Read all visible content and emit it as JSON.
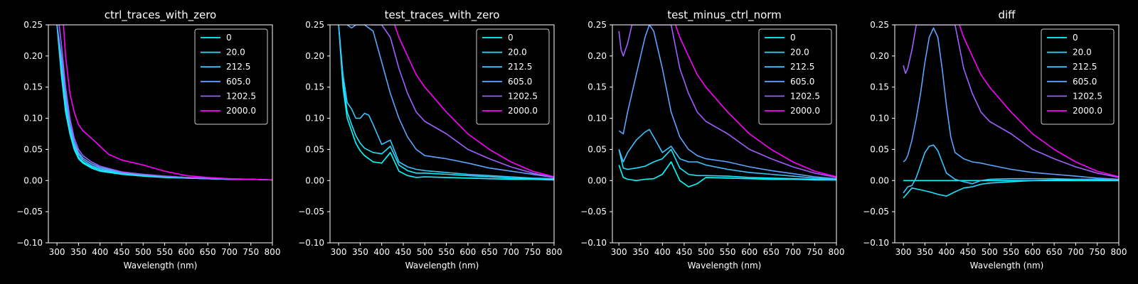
{
  "figure": {
    "background": "#000000",
    "foreground": "#ffffff"
  },
  "legend": {
    "entries": [
      {
        "label": "0",
        "color": "#00ffff"
      },
      {
        "label": "20.0",
        "color": "#1ae5ff"
      },
      {
        "label": "212.5",
        "color": "#3dc2ff"
      },
      {
        "label": "605.0",
        "color": "#5ba4ff"
      },
      {
        "label": "1202.5",
        "color": "#a05fff"
      },
      {
        "label": "2000.0",
        "color": "#ff00ff"
      }
    ],
    "placement": "top-right"
  },
  "chart_data": [
    {
      "type": "line",
      "title": "ctrl_traces_with_zero",
      "xlabel": "Wavelength (nm)",
      "ylabel": "",
      "xlim": [
        280,
        800
      ],
      "ylim": [
        -0.1,
        0.25
      ],
      "x_ticks": [
        300,
        350,
        400,
        450,
        500,
        550,
        600,
        650,
        700,
        750,
        800
      ],
      "y_ticks": [
        "−0.10",
        "−0.05",
        "0.00",
        "0.05",
        "0.10",
        "0.15",
        "0.20",
        "0.25"
      ],
      "grid": false,
      "series": [
        {
          "name": "0",
          "x": [
            300,
            310,
            320,
            330,
            340,
            350,
            360,
            380,
            400,
            450,
            500,
            550,
            600,
            650,
            700,
            750,
            800
          ],
          "y": [
            0.25,
            0.17,
            0.11,
            0.075,
            0.05,
            0.035,
            0.028,
            0.02,
            0.015,
            0.01,
            0.007,
            0.005,
            0.004,
            0.003,
            0.002,
            0.002,
            0.001
          ]
        },
        {
          "name": "20.0",
          "x": [
            300,
            310,
            320,
            330,
            340,
            350,
            360,
            380,
            400,
            450,
            500,
            550,
            600,
            650,
            700,
            750,
            800
          ],
          "y": [
            0.25,
            0.18,
            0.12,
            0.08,
            0.055,
            0.038,
            0.03,
            0.022,
            0.017,
            0.011,
            0.008,
            0.006,
            0.004,
            0.003,
            0.002,
            0.002,
            0.001
          ]
        },
        {
          "name": "212.5",
          "x": [
            300,
            310,
            320,
            330,
            340,
            350,
            360,
            380,
            400,
            450,
            500,
            550,
            600,
            650,
            700,
            750,
            800
          ],
          "y": [
            0.25,
            0.19,
            0.13,
            0.085,
            0.058,
            0.042,
            0.033,
            0.024,
            0.019,
            0.012,
            0.009,
            0.006,
            0.005,
            0.003,
            0.002,
            0.002,
            0.001
          ]
        },
        {
          "name": "605.0",
          "x": [
            300,
            310,
            320,
            330,
            340,
            350,
            360,
            380,
            400,
            450,
            500,
            550,
            600,
            650,
            700,
            750,
            800
          ],
          "y": [
            0.25,
            0.2,
            0.14,
            0.09,
            0.062,
            0.045,
            0.036,
            0.027,
            0.021,
            0.013,
            0.01,
            0.007,
            0.005,
            0.003,
            0.002,
            0.002,
            0.001
          ]
        },
        {
          "name": "1202.5",
          "x": [
            305,
            310,
            320,
            330,
            340,
            350,
            360,
            380,
            400,
            450,
            500,
            550,
            600,
            650,
            700,
            750,
            800
          ],
          "y": [
            0.25,
            0.22,
            0.15,
            0.1,
            0.068,
            0.05,
            0.04,
            0.03,
            0.023,
            0.014,
            0.01,
            0.007,
            0.005,
            0.004,
            0.003,
            0.002,
            0.001
          ]
        },
        {
          "name": "2000.0",
          "x": [
            315,
            320,
            330,
            340,
            350,
            360,
            380,
            400,
            420,
            450,
            500,
            550,
            600,
            650,
            700,
            750,
            800
          ],
          "y": [
            0.25,
            0.2,
            0.14,
            0.11,
            0.09,
            0.08,
            0.068,
            0.055,
            0.042,
            0.033,
            0.025,
            0.015,
            0.008,
            0.005,
            0.003,
            0.002,
            0.001
          ]
        }
      ]
    },
    {
      "type": "line",
      "title": "test_traces_with_zero",
      "xlabel": "Wavelength (nm)",
      "ylabel": "",
      "xlim": [
        280,
        800
      ],
      "ylim": [
        -0.1,
        0.25
      ],
      "x_ticks": [
        300,
        350,
        400,
        450,
        500,
        550,
        600,
        650,
        700,
        750,
        800
      ],
      "y_ticks": [
        "−0.10",
        "−0.05",
        "0.00",
        "0.05",
        "0.10",
        "0.15",
        "0.20",
        "0.25"
      ],
      "grid": false,
      "series": [
        {
          "name": "0",
          "x": [
            300,
            310,
            320,
            330,
            340,
            350,
            360,
            380,
            400,
            420,
            440,
            460,
            480,
            500,
            550,
            600,
            650,
            700,
            750,
            800
          ],
          "y": [
            0.25,
            0.15,
            0.1,
            0.08,
            0.06,
            0.048,
            0.04,
            0.03,
            0.028,
            0.045,
            0.015,
            0.008,
            0.005,
            0.006,
            0.005,
            0.004,
            0.003,
            0.002,
            0.002,
            0.001
          ]
        },
        {
          "name": "20.0",
          "x": [
            300,
            310,
            320,
            330,
            340,
            350,
            360,
            380,
            400,
            420,
            440,
            460,
            480,
            500,
            550,
            600,
            650,
            700,
            750,
            800
          ],
          "y": [
            0.25,
            0.16,
            0.11,
            0.09,
            0.072,
            0.06,
            0.052,
            0.045,
            0.043,
            0.055,
            0.025,
            0.016,
            0.012,
            0.012,
            0.01,
            0.008,
            0.006,
            0.004,
            0.003,
            0.002
          ]
        },
        {
          "name": "212.5",
          "x": [
            300,
            310,
            320,
            330,
            340,
            350,
            360,
            370,
            380,
            400,
            420,
            440,
            460,
            480,
            500,
            550,
            600,
            650,
            700,
            750,
            800
          ],
          "y": [
            0.25,
            0.17,
            0.125,
            0.115,
            0.1,
            0.1,
            0.108,
            0.105,
            0.09,
            0.058,
            0.065,
            0.03,
            0.022,
            0.018,
            0.016,
            0.013,
            0.01,
            0.008,
            0.006,
            0.004,
            0.003
          ]
        },
        {
          "name": "605.0",
          "x": [
            320,
            330,
            340,
            350,
            360,
            380,
            400,
            420,
            440,
            460,
            480,
            500,
            550,
            600,
            650,
            700,
            750,
            800
          ],
          "y": [
            0.25,
            0.245,
            0.25,
            0.25,
            0.25,
            0.24,
            0.19,
            0.14,
            0.1,
            0.07,
            0.05,
            0.04,
            0.035,
            0.028,
            0.02,
            0.015,
            0.01,
            0.005
          ]
        },
        {
          "name": "1202.5",
          "x": [
            375,
            380,
            400,
            420,
            440,
            460,
            480,
            500,
            550,
            600,
            650,
            700,
            750,
            800
          ],
          "y": [
            0.25,
            0.25,
            0.25,
            0.23,
            0.18,
            0.14,
            0.11,
            0.095,
            0.075,
            0.05,
            0.035,
            0.022,
            0.012,
            0.005
          ]
        },
        {
          "name": "2000.0",
          "x": [
            430,
            440,
            460,
            480,
            500,
            550,
            600,
            650,
            700,
            750,
            800
          ],
          "y": [
            0.25,
            0.23,
            0.2,
            0.17,
            0.15,
            0.11,
            0.075,
            0.05,
            0.03,
            0.015,
            0.006
          ]
        }
      ]
    },
    {
      "type": "line",
      "title": "test_minus_ctrl_norm",
      "xlabel": "Wavelength (nm)",
      "ylabel": "",
      "xlim": [
        285,
        800
      ],
      "ylim": [
        -0.1,
        0.25
      ],
      "x_ticks": [
        300,
        350,
        400,
        450,
        500,
        550,
        600,
        650,
        700,
        750,
        800
      ],
      "y_ticks": [
        "−0.10",
        "−0.05",
        "0.00",
        "0.05",
        "0.10",
        "0.15",
        "0.20",
        "0.25"
      ],
      "grid": false,
      "series": [
        {
          "name": "0",
          "x": [
            300,
            310,
            320,
            340,
            360,
            380,
            400,
            420,
            440,
            460,
            480,
            500,
            550,
            600,
            650,
            700,
            750,
            800
          ],
          "y": [
            0.025,
            0.005,
            0.002,
            0.0,
            0.002,
            0.003,
            0.01,
            0.03,
            0.0,
            -0.01,
            -0.005,
            0.005,
            0.004,
            0.003,
            0.002,
            0.002,
            0.001,
            0.001
          ]
        },
        {
          "name": "20.0",
          "x": [
            300,
            310,
            320,
            340,
            360,
            380,
            400,
            420,
            440,
            460,
            480,
            500,
            550,
            600,
            650,
            700,
            750,
            800
          ],
          "y": [
            0.05,
            0.02,
            0.018,
            0.02,
            0.023,
            0.03,
            0.035,
            0.05,
            0.02,
            0.01,
            0.008,
            0.008,
            0.007,
            0.005,
            0.004,
            0.003,
            0.002,
            0.001
          ]
        },
        {
          "name": "212.5",
          "x": [
            300,
            310,
            320,
            340,
            360,
            370,
            380,
            400,
            420,
            440,
            460,
            480,
            500,
            550,
            600,
            650,
            700,
            750,
            800
          ],
          "y": [
            0.05,
            0.03,
            0.045,
            0.065,
            0.078,
            0.082,
            0.07,
            0.045,
            0.055,
            0.035,
            0.03,
            0.03,
            0.025,
            0.018,
            0.013,
            0.01,
            0.007,
            0.004,
            0.002
          ]
        },
        {
          "name": "605.0",
          "x": [
            300,
            310,
            320,
            340,
            360,
            370,
            380,
            400,
            420,
            440,
            460,
            480,
            500,
            550,
            600,
            650,
            700,
            750,
            800
          ],
          "y": [
            0.08,
            0.075,
            0.11,
            0.17,
            0.23,
            0.25,
            0.24,
            0.18,
            0.11,
            0.07,
            0.05,
            0.04,
            0.035,
            0.03,
            0.022,
            0.016,
            0.011,
            0.006,
            0.003
          ]
        },
        {
          "name": "1202.5",
          "x": [
            300,
            305,
            310,
            320,
            330,
            335,
            420,
            440,
            460,
            480,
            500,
            550,
            600,
            650,
            700,
            750,
            800
          ],
          "y": [
            0.24,
            0.21,
            0.2,
            0.22,
            0.25,
            0.25,
            0.25,
            0.18,
            0.14,
            0.11,
            0.095,
            0.075,
            0.05,
            0.035,
            0.022,
            0.012,
            0.005
          ]
        },
        {
          "name": "2000.0",
          "x": [
            430,
            440,
            460,
            480,
            500,
            550,
            600,
            650,
            700,
            750,
            800
          ],
          "y": [
            0.25,
            0.23,
            0.2,
            0.17,
            0.15,
            0.11,
            0.075,
            0.05,
            0.03,
            0.015,
            0.006
          ]
        }
      ]
    },
    {
      "type": "line",
      "title": "diff",
      "xlabel": "Wavelength (nm)",
      "ylabel": "",
      "xlim": [
        280,
        800
      ],
      "ylim": [
        -0.1,
        0.25
      ],
      "x_ticks": [
        300,
        350,
        400,
        450,
        500,
        550,
        600,
        650,
        700,
        750,
        800
      ],
      "y_ticks": [
        "−0.10",
        "−0.05",
        "0.00",
        "0.05",
        "0.10",
        "0.15",
        "0.20",
        "0.25"
      ],
      "grid": false,
      "series": [
        {
          "name": "0",
          "x": [
            300,
            800
          ],
          "y": [
            0.0,
            0.0
          ]
        },
        {
          "name": "20.0",
          "x": [
            300,
            320,
            340,
            360,
            380,
            400,
            420,
            440,
            460,
            480,
            500,
            550,
            600,
            650,
            700,
            750,
            800
          ],
          "y": [
            -0.028,
            -0.012,
            -0.015,
            -0.018,
            -0.022,
            -0.025,
            -0.018,
            -0.012,
            -0.01,
            -0.006,
            -0.004,
            -0.002,
            0.0,
            0.001,
            0.002,
            0.002,
            0.001
          ]
        },
        {
          "name": "212.5",
          "x": [
            300,
            310,
            320,
            330,
            340,
            350,
            360,
            370,
            380,
            390,
            400,
            420,
            440,
            460,
            480,
            500,
            550,
            600,
            650,
            700,
            750,
            800
          ],
          "y": [
            -0.02,
            -0.01,
            -0.008,
            0.005,
            0.025,
            0.045,
            0.055,
            0.057,
            0.048,
            0.03,
            0.012,
            0.002,
            -0.002,
            -0.005,
            0.0,
            0.002,
            0.003,
            0.003,
            0.003,
            0.002,
            0.002,
            0.001
          ]
        },
        {
          "name": "605.0",
          "x": [
            300,
            305,
            310,
            320,
            330,
            340,
            350,
            360,
            370,
            380,
            390,
            400,
            410,
            420,
            440,
            460,
            480,
            500,
            550,
            600,
            650,
            700,
            750,
            800
          ],
          "y": [
            0.03,
            0.033,
            0.04,
            0.065,
            0.1,
            0.14,
            0.19,
            0.23,
            0.245,
            0.23,
            0.18,
            0.12,
            0.07,
            0.045,
            0.035,
            0.03,
            0.028,
            0.025,
            0.018,
            0.013,
            0.01,
            0.007,
            0.004,
            0.002
          ]
        },
        {
          "name": "1202.5",
          "x": [
            300,
            305,
            310,
            320,
            330,
            335,
            420,
            440,
            460,
            480,
            500,
            550,
            600,
            650,
            700,
            750,
            800
          ],
          "y": [
            0.185,
            0.172,
            0.18,
            0.21,
            0.25,
            0.25,
            0.25,
            0.18,
            0.14,
            0.11,
            0.095,
            0.075,
            0.05,
            0.035,
            0.022,
            0.012,
            0.005
          ]
        },
        {
          "name": "2000.0",
          "x": [
            430,
            440,
            460,
            480,
            500,
            550,
            600,
            650,
            700,
            750,
            800
          ],
          "y": [
            0.25,
            0.23,
            0.2,
            0.17,
            0.15,
            0.11,
            0.075,
            0.05,
            0.03,
            0.015,
            0.006
          ]
        }
      ]
    }
  ]
}
